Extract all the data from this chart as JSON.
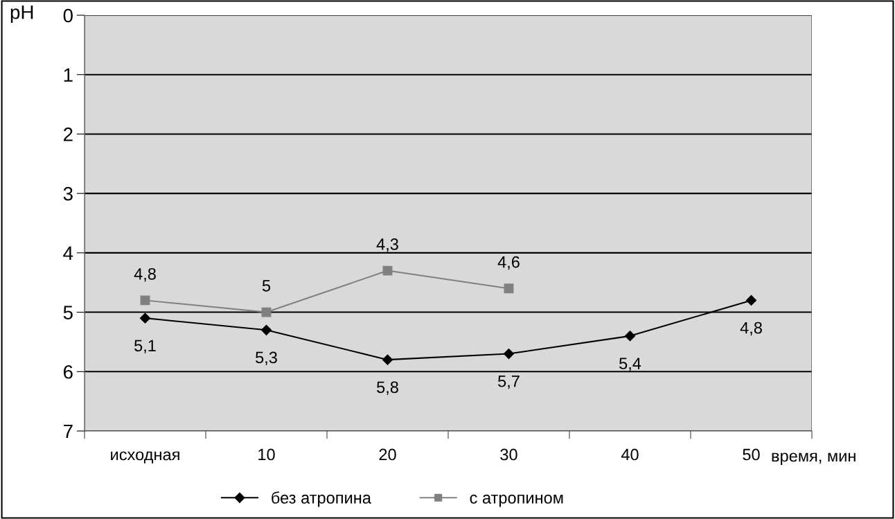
{
  "chart_data": {
    "type": "line",
    "ylabel": "pH",
    "xlabel": "время, мин",
    "categories": [
      "исходная",
      "10",
      "20",
      "30",
      "40",
      "50"
    ],
    "ylim": [
      7,
      0
    ],
    "yticks": [
      0,
      1,
      2,
      3,
      4,
      5,
      6,
      7
    ],
    "grid": "y",
    "legend": "bottom",
    "series": [
      {
        "name": "без атропина",
        "color": "#000000",
        "marker": "diamond",
        "values": [
          5.1,
          5.3,
          5.8,
          5.7,
          5.4,
          4.8
        ],
        "value_labels": [
          "5,1",
          "5,3",
          "5,8",
          "5,7",
          "5,4",
          "4,8"
        ]
      },
      {
        "name": "с атропином",
        "color": "#808080",
        "marker": "square",
        "values": [
          4.8,
          5,
          4.3,
          4.6,
          null,
          null
        ],
        "value_labels": [
          "4,8",
          "5",
          "4,3",
          "4,6",
          null,
          null
        ]
      }
    ]
  }
}
